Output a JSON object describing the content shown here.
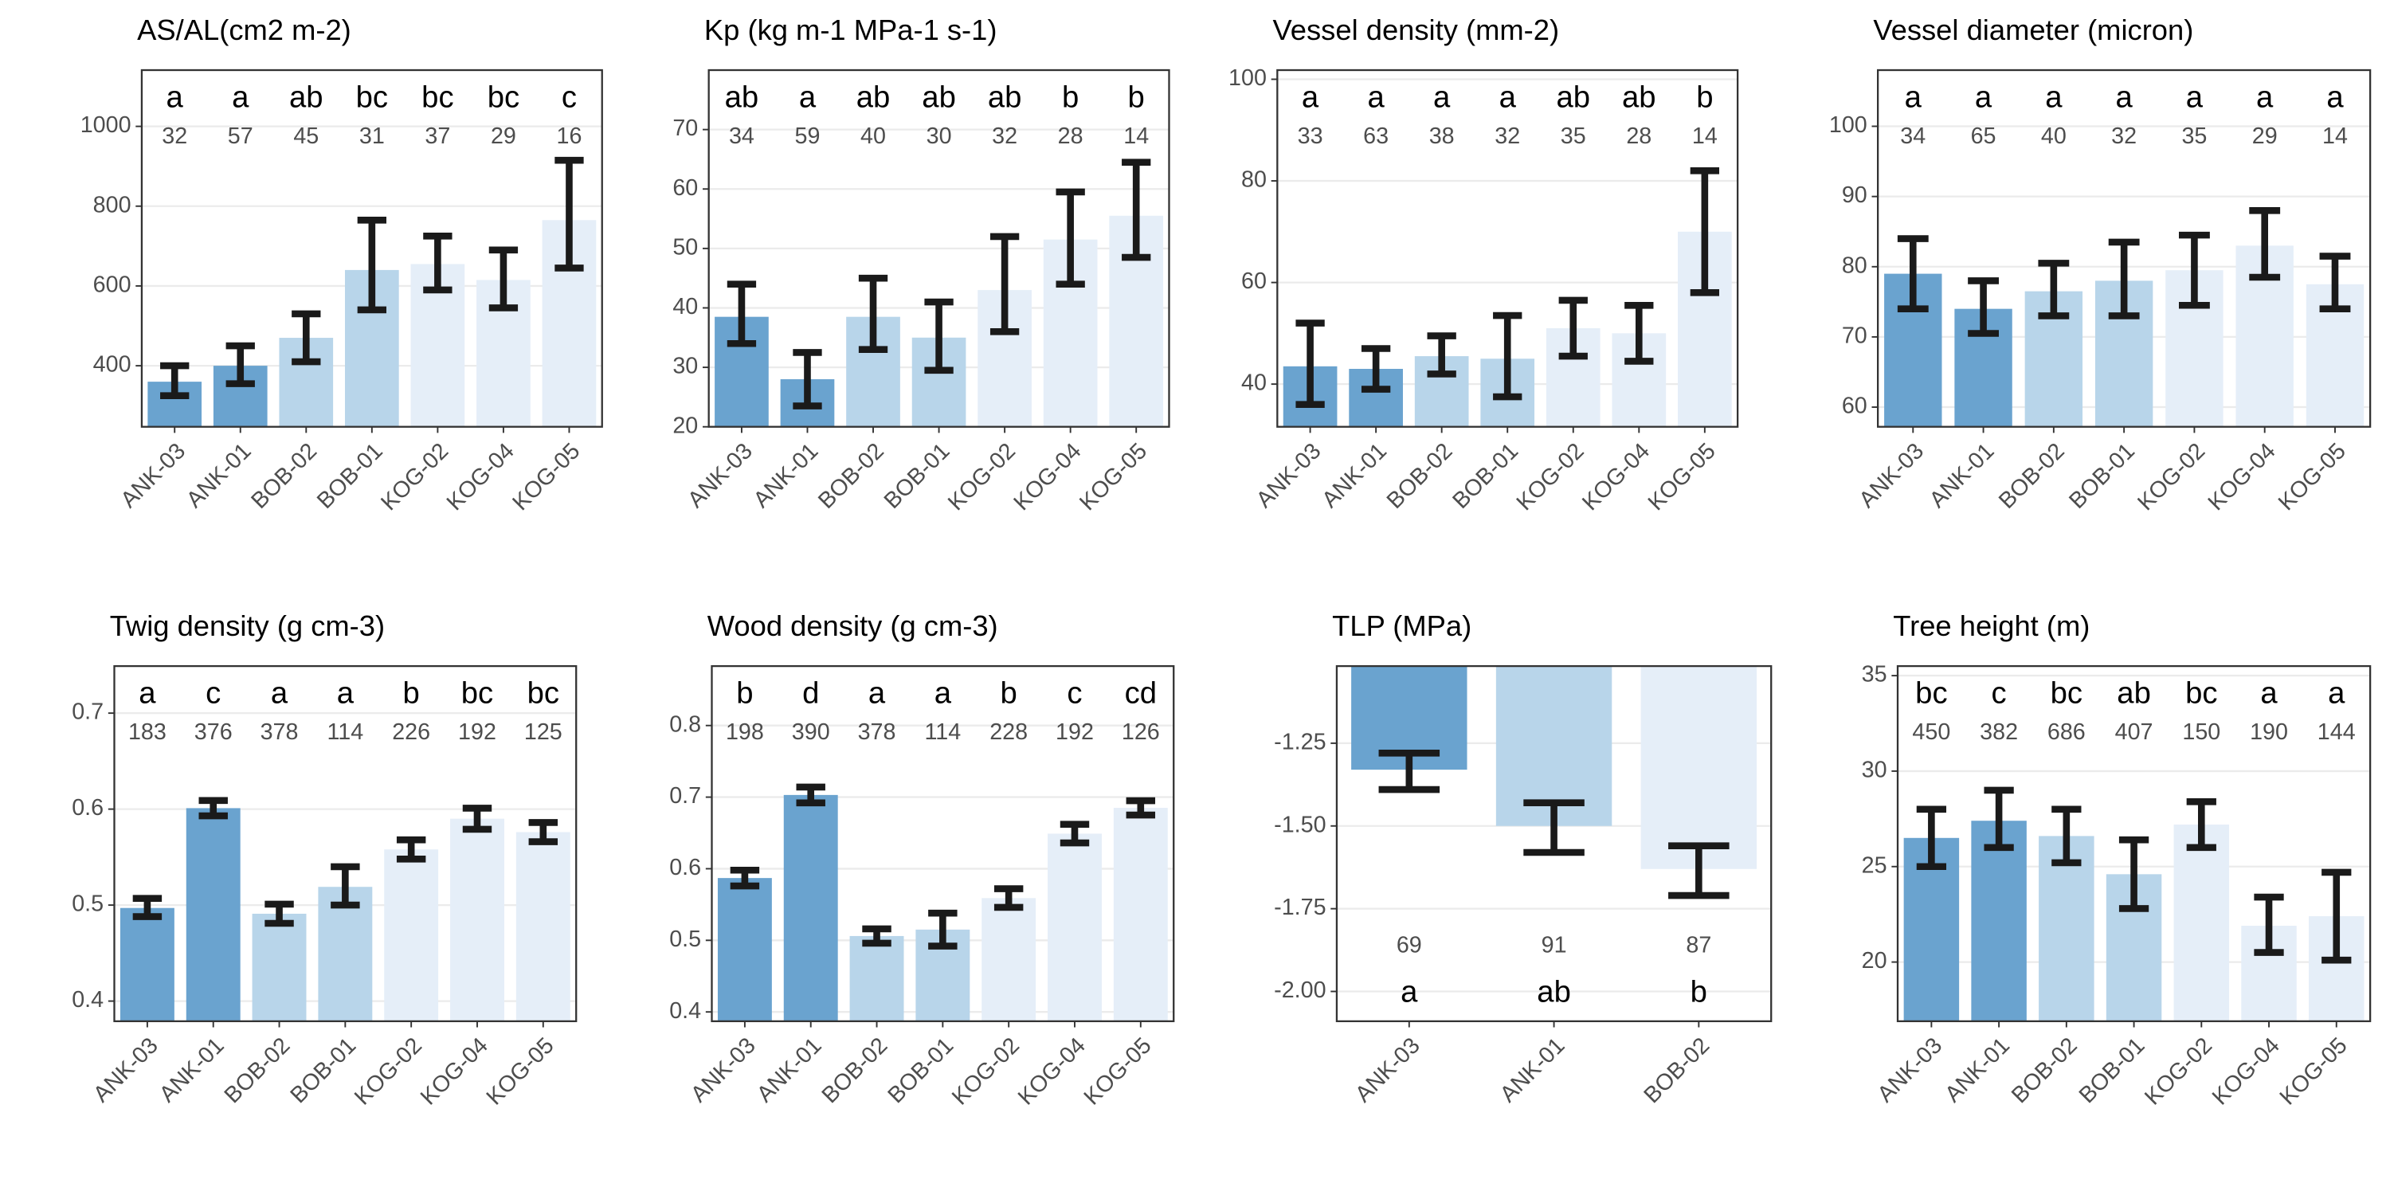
{
  "chart_data": [
    {
      "type": "bar",
      "title": "AS/AL(cm2 m-2)",
      "categories": [
        "ANK-03",
        "ANK-01",
        "BOB-02",
        "BOB-01",
        "KOG-02",
        "KOG-04",
        "KOG-05"
      ],
      "values": [
        360,
        400,
        470,
        640,
        655,
        615,
        765
      ],
      "lower": [
        325,
        355,
        410,
        540,
        590,
        545,
        645
      ],
      "upper": [
        400,
        450,
        530,
        765,
        725,
        690,
        915
      ],
      "letters": [
        "a",
        "a",
        "ab",
        "bc",
        "bc",
        "bc",
        "c"
      ],
      "n": [
        32,
        57,
        45,
        31,
        37,
        29,
        16
      ],
      "colors": [
        "#6aa3cf",
        "#6aa3cf",
        "#b8d5ea",
        "#b8d5ea",
        "#e5eef8",
        "#e5eef8",
        "#e5eef8"
      ],
      "ylim": [
        247,
        1141
      ],
      "yticks": [
        400,
        600,
        800,
        1000
      ],
      "grid": true
    },
    {
      "type": "bar",
      "title": "Kp (kg m-1 MPa-1 s-1)",
      "categories": [
        "ANK-03",
        "ANK-01",
        "BOB-02",
        "BOB-01",
        "KOG-02",
        "KOG-04",
        "KOG-05"
      ],
      "values": [
        38.5,
        28,
        38.5,
        35,
        43,
        51.5,
        55.5
      ],
      "lower": [
        34,
        23.5,
        33,
        29.5,
        36,
        44,
        48.5
      ],
      "upper": [
        44,
        32.5,
        45,
        41,
        52,
        59.5,
        64.5
      ],
      "letters": [
        "ab",
        "a",
        "ab",
        "ab",
        "ab",
        "b",
        "b"
      ],
      "n": [
        34,
        59,
        40,
        30,
        32,
        28,
        14
      ],
      "colors": [
        "#6aa3cf",
        "#6aa3cf",
        "#b8d5ea",
        "#b8d5ea",
        "#e5eef8",
        "#e5eef8",
        "#e5eef8"
      ],
      "ylim": [
        20,
        80
      ],
      "yticks": [
        20,
        30,
        40,
        50,
        60,
        70
      ],
      "grid": true
    },
    {
      "type": "bar",
      "title": "Vessel density (mm-2)",
      "categories": [
        "ANK-03",
        "ANK-01",
        "BOB-02",
        "BOB-01",
        "KOG-02",
        "KOG-04",
        "KOG-05"
      ],
      "values": [
        43.5,
        43,
        45.5,
        45,
        51,
        50,
        70
      ],
      "lower": [
        36,
        39,
        42,
        37.5,
        45.5,
        44.5,
        58
      ],
      "upper": [
        52,
        47,
        49.5,
        53.5,
        56.5,
        55.5,
        82
      ],
      "letters": [
        "a",
        "a",
        "a",
        "a",
        "ab",
        "ab",
        "b"
      ],
      "n": [
        33,
        63,
        38,
        32,
        35,
        28,
        14
      ],
      "colors": [
        "#6aa3cf",
        "#6aa3cf",
        "#b8d5ea",
        "#b8d5ea",
        "#e5eef8",
        "#e5eef8",
        "#e5eef8"
      ],
      "ylim": [
        31.6,
        101.8
      ],
      "yticks": [
        40,
        60,
        80,
        100
      ],
      "grid": true
    },
    {
      "type": "bar",
      "title": "Vessel diameter (micron)",
      "categories": [
        "ANK-03",
        "ANK-01",
        "BOB-02",
        "BOB-01",
        "KOG-02",
        "KOG-04",
        "KOG-05"
      ],
      "values": [
        79,
        74,
        76.5,
        78,
        79.5,
        83,
        77.5
      ],
      "lower": [
        74,
        70.5,
        73,
        73,
        74.5,
        78.5,
        74
      ],
      "upper": [
        84,
        78,
        80.5,
        83.5,
        84.5,
        88,
        81.5
      ],
      "letters": [
        "a",
        "a",
        "a",
        "a",
        "a",
        "a",
        "a"
      ],
      "n": [
        34,
        65,
        40,
        32,
        35,
        29,
        14
      ],
      "colors": [
        "#6aa3cf",
        "#6aa3cf",
        "#b8d5ea",
        "#b8d5ea",
        "#e5eef8",
        "#e5eef8",
        "#e5eef8"
      ],
      "ylim": [
        57.2,
        108
      ],
      "yticks": [
        60,
        70,
        80,
        90,
        100
      ],
      "grid": true
    },
    {
      "type": "bar",
      "title": "Twig density (g cm-3)",
      "categories": [
        "ANK-03",
        "ANK-01",
        "BOB-02",
        "BOB-01",
        "KOG-02",
        "KOG-04",
        "KOG-05"
      ],
      "values": [
        0.497,
        0.601,
        0.491,
        0.519,
        0.558,
        0.59,
        0.576
      ],
      "lower": [
        0.488,
        0.593,
        0.481,
        0.5,
        0.548,
        0.579,
        0.566
      ],
      "upper": [
        0.507,
        0.609,
        0.501,
        0.54,
        0.568,
        0.601,
        0.586
      ],
      "letters": [
        "a",
        "c",
        "a",
        "a",
        "b",
        "bc",
        "bc"
      ],
      "n": [
        183,
        376,
        378,
        114,
        226,
        192,
        125
      ],
      "colors": [
        "#6aa3cf",
        "#6aa3cf",
        "#b8d5ea",
        "#b8d5ea",
        "#e5eef8",
        "#e5eef8",
        "#e5eef8"
      ],
      "ylim": [
        0.379,
        0.749
      ],
      "yticks": [
        0.4,
        0.5,
        0.6,
        0.7
      ],
      "grid": true
    },
    {
      "type": "bar",
      "title": "Wood density (g cm-3)",
      "categories": [
        "ANK-03",
        "ANK-01",
        "BOB-02",
        "BOB-01",
        "KOG-02",
        "KOG-04",
        "KOG-05"
      ],
      "values": [
        0.587,
        0.703,
        0.506,
        0.515,
        0.559,
        0.649,
        0.685
      ],
      "lower": [
        0.576,
        0.692,
        0.496,
        0.492,
        0.546,
        0.636,
        0.675
      ],
      "upper": [
        0.598,
        0.714,
        0.516,
        0.538,
        0.572,
        0.662,
        0.695
      ],
      "letters": [
        "b",
        "d",
        "a",
        "a",
        "b",
        "c",
        "cd"
      ],
      "n": [
        198,
        390,
        378,
        114,
        228,
        192,
        126
      ],
      "colors": [
        "#6aa3cf",
        "#6aa3cf",
        "#b8d5ea",
        "#b8d5ea",
        "#e5eef8",
        "#e5eef8",
        "#e5eef8"
      ],
      "ylim": [
        0.387,
        0.883
      ],
      "yticks": [
        0.4,
        0.5,
        0.6,
        0.7,
        0.8
      ],
      "grid": true
    },
    {
      "type": "bar",
      "title": "TLP (MPa)",
      "categories": [
        "ANK-03",
        "ANK-01",
        "BOB-02"
      ],
      "values": [
        -1.33,
        -1.5,
        -1.63
      ],
      "lower": [
        -1.39,
        -1.58,
        -1.71
      ],
      "upper": [
        -1.28,
        -1.43,
        -1.56
      ],
      "letters": [
        "a",
        "ab",
        "b"
      ],
      "n": [
        69,
        91,
        87
      ],
      "colors": [
        "#6aa3cf",
        "#b8d5ea",
        "#e5eef8"
      ],
      "ylim": [
        -2.09,
        -1.017
      ],
      "yticks": [
        {
          "value": -2.0,
          "label": "-2.00"
        },
        -1.75,
        {
          "value": -1.5,
          "label": "-1.50"
        },
        -1.25
      ],
      "grid": true
    },
    {
      "type": "bar",
      "title": "Tree height (m)",
      "categories": [
        "ANK-03",
        "ANK-01",
        "BOB-02",
        "BOB-01",
        "KOG-02",
        "KOG-04",
        "KOG-05"
      ],
      "values": [
        26.5,
        27.4,
        26.6,
        24.6,
        27.2,
        21.9,
        22.4
      ],
      "lower": [
        25,
        26,
        25.2,
        22.8,
        26,
        20.5,
        20.1
      ],
      "upper": [
        28,
        29,
        28,
        26.4,
        28.4,
        23.4,
        24.7
      ],
      "letters": [
        "bc",
        "c",
        "bc",
        "ab",
        "bc",
        "a",
        "a"
      ],
      "n": [
        450,
        382,
        686,
        407,
        150,
        190,
        144
      ],
      "colors": [
        "#6aa3cf",
        "#6aa3cf",
        "#b8d5ea",
        "#b8d5ea",
        "#e5eef8",
        "#e5eef8",
        "#e5eef8"
      ],
      "ylim": [
        16.9,
        35.5
      ],
      "yticks": [
        20,
        25,
        30,
        35
      ],
      "grid": true
    }
  ]
}
